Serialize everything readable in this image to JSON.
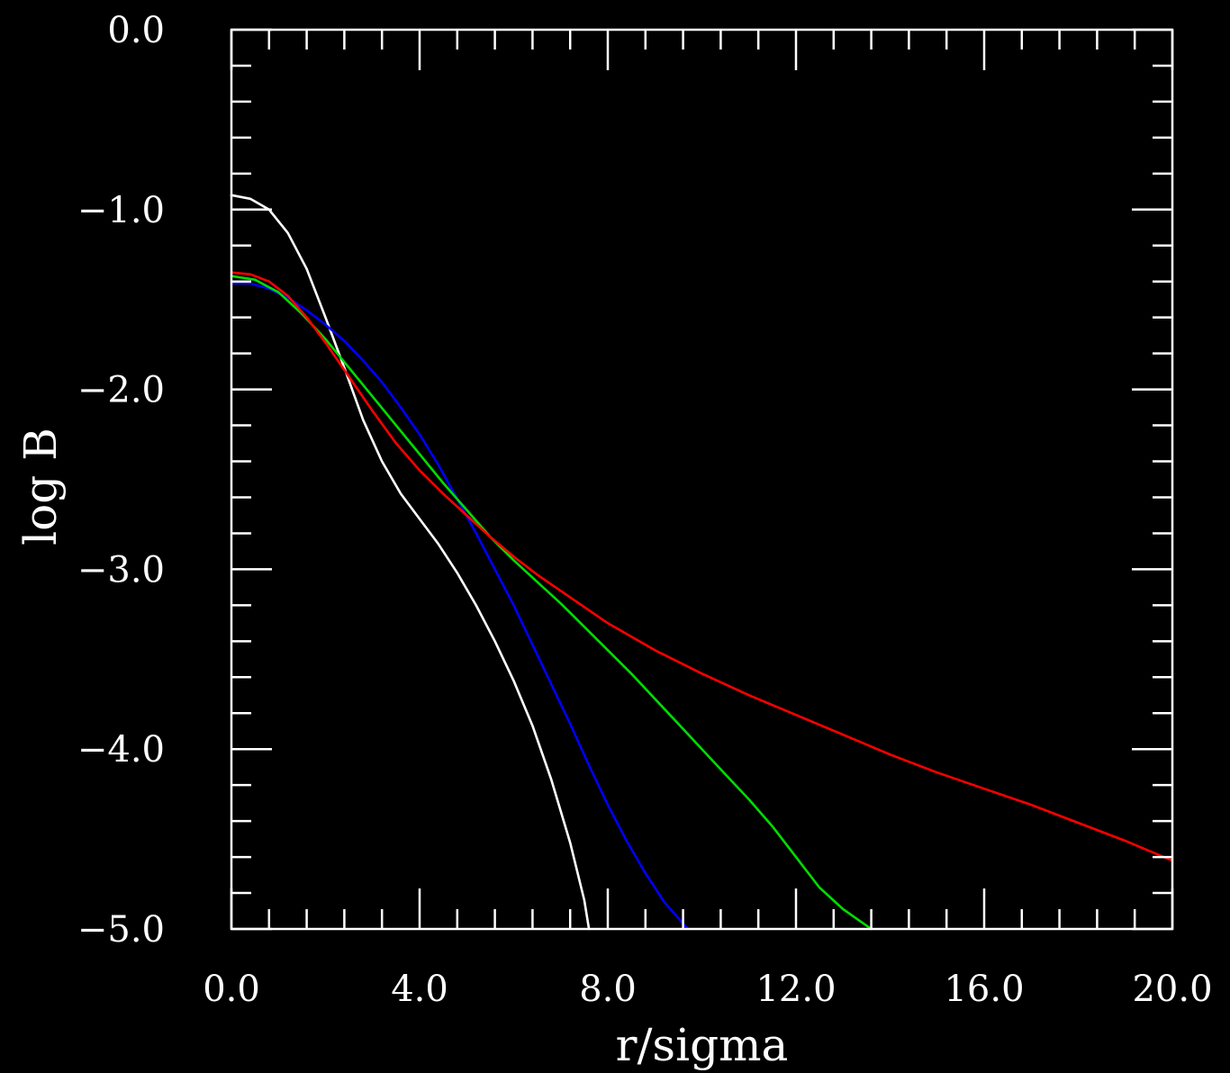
{
  "chart_data": {
    "type": "line",
    "title": "",
    "xlabel": "r/sigma",
    "ylabel": "log B",
    "xlim": [
      0,
      20
    ],
    "ylim": [
      -5,
      0
    ],
    "x_tick_labels": [
      "0.0",
      "4.0",
      "8.0",
      "12.0",
      "16.0",
      "20.0"
    ],
    "x_tick_values": [
      0,
      4,
      8,
      12,
      16,
      20
    ],
    "y_tick_labels": [
      "0.0",
      "-1.0",
      "-2.0",
      "-3.0",
      "-4.0",
      "-5.0"
    ],
    "y_tick_values": [
      0,
      -1,
      -2,
      -3,
      -4,
      -5
    ],
    "x_minor_step": 0.8,
    "y_minor_step": 0.2,
    "background": "#000000",
    "axis_color": "#ffffff",
    "grid": false,
    "legend": "none",
    "series": [
      {
        "color": "#ffffff",
        "points": [
          [
            0,
            -0.92
          ],
          [
            0.4,
            -0.94
          ],
          [
            0.8,
            -1.0
          ],
          [
            1.2,
            -1.13
          ],
          [
            1.6,
            -1.33
          ],
          [
            2.0,
            -1.6
          ],
          [
            2.4,
            -1.88
          ],
          [
            2.8,
            -2.17
          ],
          [
            3.2,
            -2.4
          ],
          [
            3.6,
            -2.58
          ],
          [
            4.0,
            -2.72
          ],
          [
            4.4,
            -2.86
          ],
          [
            4.8,
            -3.02
          ],
          [
            5.2,
            -3.2
          ],
          [
            5.6,
            -3.4
          ],
          [
            6.0,
            -3.62
          ],
          [
            6.4,
            -3.87
          ],
          [
            6.8,
            -4.17
          ],
          [
            7.2,
            -4.52
          ],
          [
            7.5,
            -4.84
          ],
          [
            7.6,
            -5.0
          ]
        ]
      },
      {
        "color": "#0000ff",
        "points": [
          [
            0,
            -1.41
          ],
          [
            0.4,
            -1.41
          ],
          [
            0.8,
            -1.44
          ],
          [
            1.2,
            -1.49
          ],
          [
            1.6,
            -1.56
          ],
          [
            2.0,
            -1.64
          ],
          [
            2.4,
            -1.73
          ],
          [
            2.8,
            -1.84
          ],
          [
            3.2,
            -1.96
          ],
          [
            3.6,
            -2.1
          ],
          [
            4.0,
            -2.25
          ],
          [
            4.4,
            -2.42
          ],
          [
            4.8,
            -2.61
          ],
          [
            5.2,
            -2.8
          ],
          [
            5.6,
            -3.0
          ],
          [
            6.0,
            -3.2
          ],
          [
            6.4,
            -3.42
          ],
          [
            6.8,
            -3.64
          ],
          [
            7.2,
            -3.86
          ],
          [
            7.6,
            -4.09
          ],
          [
            8.0,
            -4.31
          ],
          [
            8.4,
            -4.51
          ],
          [
            8.8,
            -4.69
          ],
          [
            9.2,
            -4.85
          ],
          [
            9.7,
            -5.0
          ]
        ]
      },
      {
        "color": "#00dd00",
        "points": [
          [
            0,
            -1.37
          ],
          [
            0.5,
            -1.39
          ],
          [
            1.0,
            -1.46
          ],
          [
            1.5,
            -1.58
          ],
          [
            2.0,
            -1.72
          ],
          [
            2.5,
            -1.88
          ],
          [
            3.0,
            -2.04
          ],
          [
            3.5,
            -2.2
          ],
          [
            4.0,
            -2.36
          ],
          [
            4.5,
            -2.52
          ],
          [
            5.0,
            -2.67
          ],
          [
            5.5,
            -2.82
          ],
          [
            6.0,
            -2.95
          ],
          [
            6.5,
            -3.07
          ],
          [
            7.0,
            -3.19
          ],
          [
            7.5,
            -3.32
          ],
          [
            8.0,
            -3.45
          ],
          [
            8.5,
            -3.58
          ],
          [
            9.0,
            -3.72
          ],
          [
            9.5,
            -3.86
          ],
          [
            10.0,
            -4.0
          ],
          [
            10.5,
            -4.14
          ],
          [
            11.0,
            -4.28
          ],
          [
            11.5,
            -4.43
          ],
          [
            12.0,
            -4.6
          ],
          [
            12.5,
            -4.77
          ],
          [
            13.0,
            -4.89
          ],
          [
            13.6,
            -5.0
          ]
        ]
      },
      {
        "color": "#ff0000",
        "points": [
          [
            0,
            -1.35
          ],
          [
            0.4,
            -1.36
          ],
          [
            0.8,
            -1.4
          ],
          [
            1.2,
            -1.48
          ],
          [
            1.6,
            -1.6
          ],
          [
            2.0,
            -1.74
          ],
          [
            2.5,
            -1.93
          ],
          [
            3.0,
            -2.12
          ],
          [
            3.5,
            -2.3
          ],
          [
            4.0,
            -2.45
          ],
          [
            4.5,
            -2.58
          ],
          [
            5.0,
            -2.7
          ],
          [
            5.5,
            -2.82
          ],
          [
            6.0,
            -2.93
          ],
          [
            6.5,
            -3.03
          ],
          [
            7.0,
            -3.12
          ],
          [
            8.0,
            -3.3
          ],
          [
            9.0,
            -3.45
          ],
          [
            10.0,
            -3.58
          ],
          [
            11.0,
            -3.7
          ],
          [
            12.0,
            -3.81
          ],
          [
            13.0,
            -3.92
          ],
          [
            14.0,
            -4.03
          ],
          [
            15.0,
            -4.13
          ],
          [
            16.0,
            -4.22
          ],
          [
            17.0,
            -4.31
          ],
          [
            18.0,
            -4.41
          ],
          [
            19.0,
            -4.51
          ],
          [
            20.0,
            -4.62
          ]
        ]
      }
    ]
  }
}
